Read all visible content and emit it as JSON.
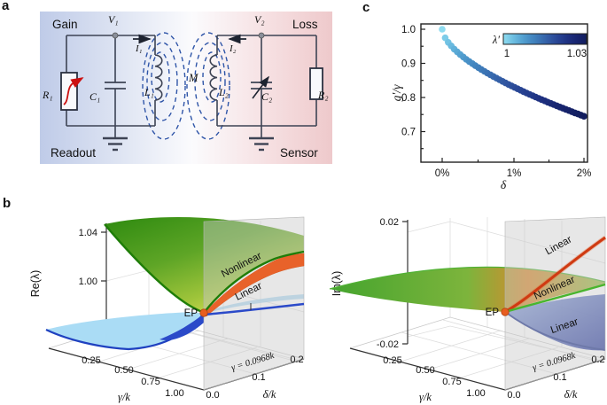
{
  "figure": {
    "panel_a_letter": "a",
    "panel_b_letter": "b",
    "panel_c_letter": "c"
  },
  "circuit": {
    "gain": "Gain",
    "loss": "Loss",
    "readout": "Readout",
    "sensor": "Sensor",
    "v1": "V₁",
    "v2": "V₂",
    "i1": "I₁",
    "i2": "I₂",
    "r1": "R₁",
    "r2": "R₂",
    "c1": "C₁",
    "c2": "C₂",
    "l1": "L₁",
    "l2": "L₂",
    "m": "M"
  },
  "plot_re": {
    "zlabel": "Re(λ)",
    "z_ticks": [
      "1.04",
      "1.00",
      "0.96"
    ],
    "xlabel": "γ/k",
    "x_ticks": [
      "0.25",
      "0.50",
      "0.75",
      "1.00"
    ],
    "ylabel": "δ/k",
    "y_ticks": [
      "0.0",
      "0.1",
      "0.2"
    ],
    "plane_label": "γ = 0.0968k",
    "label_nonlinear": "Nonlinear",
    "label_linear": "Linear",
    "label_ep": "EP"
  },
  "plot_im": {
    "zlabel": "Im(λ)",
    "z_ticks": [
      "0.02",
      "0.00",
      "-0.02"
    ],
    "xlabel": "γ/k",
    "x_ticks": [
      "0.25",
      "0.50",
      "0.75",
      "1.00"
    ],
    "ylabel": "δ/k",
    "y_ticks": [
      "0.0",
      "0.1",
      "0.2"
    ],
    "plane_label": "γ = 0.0968k",
    "label_linear_top": "Linear",
    "label_nonlinear": "Nonlinear",
    "label_linear_bottom": "Linear",
    "label_ep": "EP"
  },
  "panel_c": {
    "ylabel": "g′/γ",
    "xlabel": "δ",
    "y_ticks": [
      "1.0",
      "0.9",
      "0.8",
      "0.7"
    ],
    "x_ticks": [
      "0%",
      "1%",
      "2%"
    ],
    "colorbar": {
      "label": "λ′",
      "min": "1",
      "max": "1.03"
    }
  },
  "colors": {
    "gain_bg": "#bfcbe8",
    "loss_bg": "#eec9cb",
    "wire": "#3d4354",
    "coupling_dash": "#2f55a8",
    "gain_arrow": "#cc1111",
    "green_surface": "#2f8c12",
    "green_edge": "#1e7d08",
    "orange_branch": "#e8622a",
    "red_branch": "#cf3a12",
    "blue_branch": "#2b4ac9",
    "light_blue_surface": "#aadcf5",
    "plane": "#c9c9c9",
    "ep_dot": "#e85d1f",
    "colormap": [
      "#8fdcf0",
      "#6fc0e2",
      "#55a3d2",
      "#4489c2",
      "#3a71b2",
      "#3158a2",
      "#274292",
      "#1e3080",
      "#17246e",
      "#121d5e"
    ]
  },
  "chart_data": [
    {
      "type": "scatter",
      "panel": "c",
      "xlabel": "δ",
      "ylabel": "g′/γ",
      "x_unit": "%",
      "xlim": [
        -0.3,
        2.05
      ],
      "ylim": [
        0.65,
        1.03
      ],
      "x_ticks": [
        0,
        1,
        2
      ],
      "y_ticks": [
        1.0,
        0.9,
        0.8,
        0.7
      ],
      "colorbar": {
        "label": "λ′",
        "min": 1,
        "max": 1.03
      },
      "points": [
        [
          0.0,
          1.0
        ],
        [
          0.043,
          0.9747
        ],
        [
          0.085,
          0.9616
        ],
        [
          0.128,
          0.9511
        ],
        [
          0.17,
          0.9418
        ],
        [
          0.213,
          0.9335
        ],
        [
          0.255,
          0.9258
        ],
        [
          0.298,
          0.9186
        ],
        [
          0.34,
          0.9118
        ],
        [
          0.383,
          0.9054
        ],
        [
          0.426,
          0.8992
        ],
        [
          0.468,
          0.8933
        ],
        [
          0.511,
          0.8876
        ],
        [
          0.553,
          0.8821
        ],
        [
          0.596,
          0.8767
        ],
        [
          0.638,
          0.8715
        ],
        [
          0.681,
          0.8664
        ],
        [
          0.723,
          0.8615
        ],
        [
          0.766,
          0.8566
        ],
        [
          0.809,
          0.8519
        ],
        [
          0.851,
          0.8473
        ],
        [
          0.894,
          0.8427
        ],
        [
          0.936,
          0.8383
        ],
        [
          0.979,
          0.8339
        ],
        [
          1.021,
          0.8296
        ],
        [
          1.064,
          0.8254
        ],
        [
          1.106,
          0.8213
        ],
        [
          1.149,
          0.8171
        ],
        [
          1.191,
          0.8131
        ],
        [
          1.234,
          0.8091
        ],
        [
          1.277,
          0.8052
        ],
        [
          1.319,
          0.8014
        ],
        [
          1.362,
          0.7975
        ],
        [
          1.404,
          0.7938
        ],
        [
          1.447,
          0.79
        ],
        [
          1.489,
          0.7863
        ],
        [
          1.532,
          0.7827
        ],
        [
          1.574,
          0.7791
        ],
        [
          1.617,
          0.7755
        ],
        [
          1.66,
          0.772
        ],
        [
          1.702,
          0.7685
        ],
        [
          1.745,
          0.7651
        ],
        [
          1.787,
          0.7617
        ],
        [
          1.83,
          0.7583
        ],
        [
          1.872,
          0.7549
        ],
        [
          1.915,
          0.7516
        ],
        [
          1.957,
          0.7483
        ],
        [
          2.0,
          0.745
        ]
      ]
    },
    {
      "type": "surface",
      "panel": "b-left",
      "zlabel": "Re(λ)",
      "xlabel": "γ/k",
      "ylabel": "δ/k",
      "xlim": [
        0.0968,
        1.0
      ],
      "ylim": [
        0,
        0.2
      ],
      "zlim": [
        0.945,
        1.05
      ],
      "slice_plane": "γ = 0.0968k",
      "ep": {
        "gamma_over_k": 0.0968,
        "delta_over_k": 0,
        "value": 0.98
      },
      "delta_samples": [
        0,
        0.05,
        0.1,
        0.15,
        0.2
      ],
      "branches": {
        "nonlinear_upper": [
          0.98,
          1.0,
          1.011,
          1.019,
          1.026
        ],
        "linear_upper": [
          0.98,
          0.992,
          1.0,
          1.007,
          1.013
        ],
        "linear_lower": [
          0.98,
          0.984,
          0.987,
          0.989,
          0.991
        ]
      },
      "gamma_samples_at_delta0": [
        0.25,
        0.5,
        0.75,
        1.0
      ],
      "gamma_branches_at_delta0": {
        "upper": [
          1.045,
          1.032,
          1.018,
          1.005
        ],
        "lower": [
          0.952,
          0.955,
          0.96,
          0.968
        ]
      }
    },
    {
      "type": "surface",
      "panel": "b-right",
      "zlabel": "Im(λ)",
      "xlabel": "γ/k",
      "ylabel": "δ/k",
      "xlim": [
        0.0968,
        1.0
      ],
      "ylim": [
        0,
        0.2
      ],
      "zlim": [
        -0.02,
        0.02
      ],
      "slice_plane": "γ = 0.0968k",
      "ep": {
        "gamma_over_k": 0.0968,
        "delta_over_k": 0,
        "value": 0
      },
      "delta_samples": [
        0,
        0.05,
        0.1,
        0.15,
        0.2
      ],
      "branches": {
        "linear_upper": [
          0,
          0.006,
          0.01,
          0.013,
          0.016
        ],
        "nonlinear": [
          0,
          0,
          0,
          0,
          0
        ],
        "linear_lower": [
          0,
          -0.006,
          -0.01,
          -0.013,
          -0.016
        ]
      }
    }
  ]
}
